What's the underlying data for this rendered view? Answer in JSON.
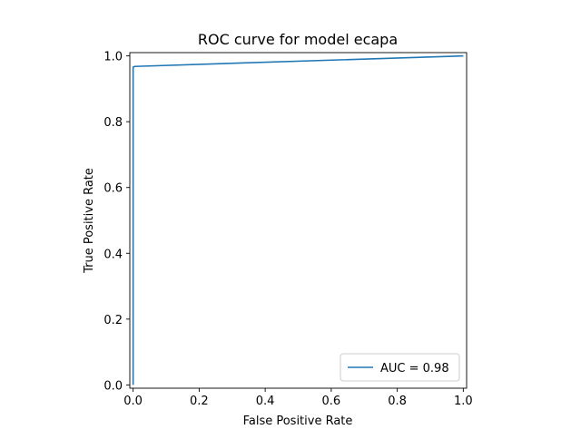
{
  "chart_data": {
    "type": "line",
    "title": "ROC curve for model ecapa",
    "xlabel": "False Positive Rate",
    "ylabel": "True Positive Rate",
    "xlim": [
      -0.01,
      1.01
    ],
    "ylim": [
      -0.01,
      1.01
    ],
    "x_ticks": [
      0.0,
      0.2,
      0.4,
      0.6,
      0.8,
      1.0
    ],
    "x_tick_labels": [
      "0.0",
      "0.2",
      "0.4",
      "0.6",
      "0.8",
      "1.0"
    ],
    "y_ticks": [
      0.0,
      0.2,
      0.4,
      0.6,
      0.8,
      1.0
    ],
    "y_tick_labels": [
      "0.0",
      "0.2",
      "0.4",
      "0.6",
      "0.8",
      "1.0"
    ],
    "grid": false,
    "legend": {
      "placement": "lower-right",
      "entries": [
        "AUC = 0.98"
      ]
    },
    "series": [
      {
        "name": "AUC = 0.98",
        "color": "#1f77b4",
        "x": [
          0.0,
          0.0,
          0.005,
          1.0
        ],
        "y": [
          0.0,
          0.966,
          0.968,
          1.0
        ]
      }
    ]
  }
}
